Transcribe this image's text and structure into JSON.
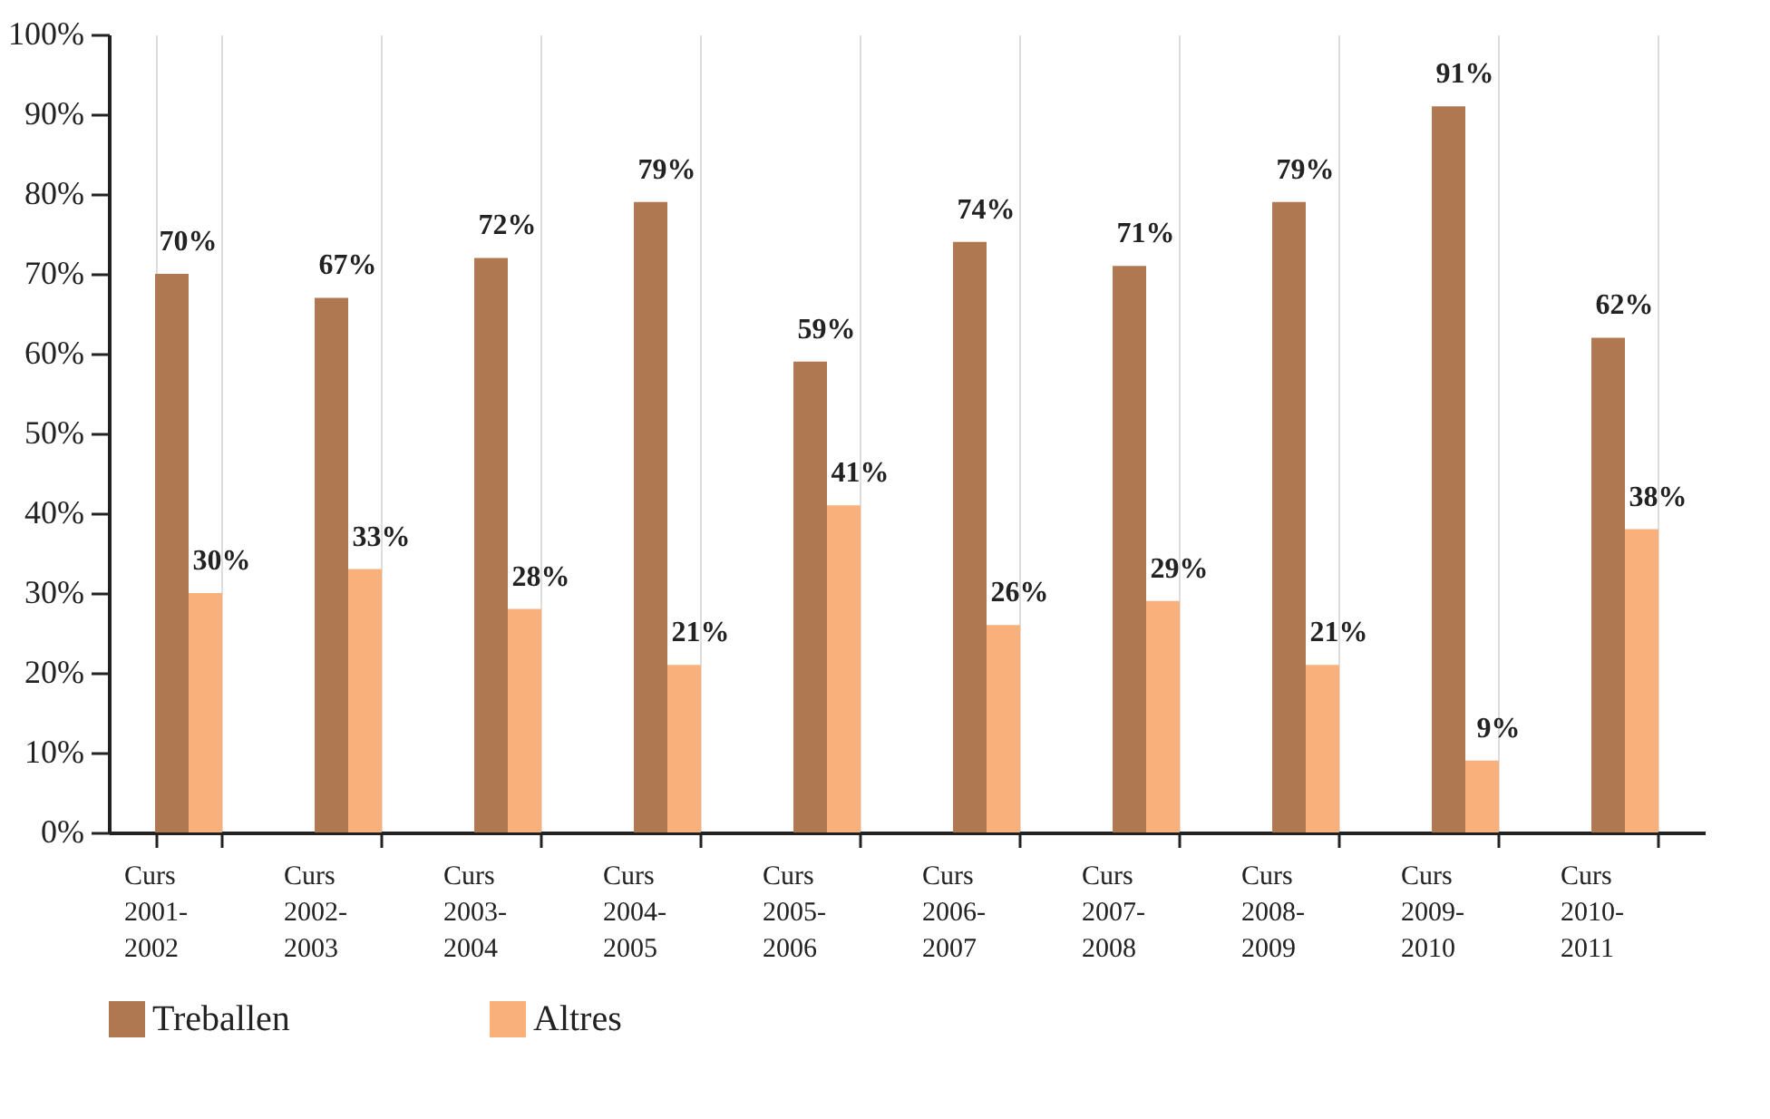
{
  "chart_data": {
    "type": "bar",
    "categories": [
      "Curs 2001-2002",
      "Curs 2002-2003",
      "Curs 2003-2004",
      "Curs 2004-2005",
      "Curs 2005-2006",
      "Curs 2006-2007",
      "Curs 2007-2008",
      "Curs 2008-2009",
      "Curs 2009-2010",
      "Curs 2010-2011"
    ],
    "series": [
      {
        "name": "Treballen",
        "color": "#b07850",
        "values": [
          70,
          67,
          72,
          79,
          59,
          74,
          71,
          79,
          91,
          62
        ],
        "value_labels": [
          "70%",
          "67%",
          "72%",
          "79%",
          "59%",
          "74%",
          "71%",
          "79%",
          "91%",
          "62%"
        ]
      },
      {
        "name": "Altres",
        "color": "#f9b07a",
        "values": [
          30,
          33,
          28,
          21,
          41,
          26,
          29,
          21,
          9,
          38
        ],
        "value_labels": [
          "30%",
          "33%",
          "28%",
          "21%",
          "41%",
          "26%",
          "29%",
          "21%",
          "9%",
          "38%"
        ]
      }
    ],
    "ylim": [
      0,
      100
    ],
    "yticks": [
      {
        "value": 0,
        "label": "0%"
      },
      {
        "value": 10,
        "label": "10%"
      },
      {
        "value": 20,
        "label": "20%"
      },
      {
        "value": 30,
        "label": "30%"
      },
      {
        "value": 40,
        "label": "40%"
      },
      {
        "value": 50,
        "label": "50%"
      },
      {
        "value": 60,
        "label": "60%"
      },
      {
        "value": 70,
        "label": "70%"
      },
      {
        "value": 80,
        "label": "80%"
      },
      {
        "value": 90,
        "label": "90%"
      },
      {
        "value": 100,
        "label": "100%"
      }
    ],
    "grid": "x",
    "legend": "bottom left"
  }
}
